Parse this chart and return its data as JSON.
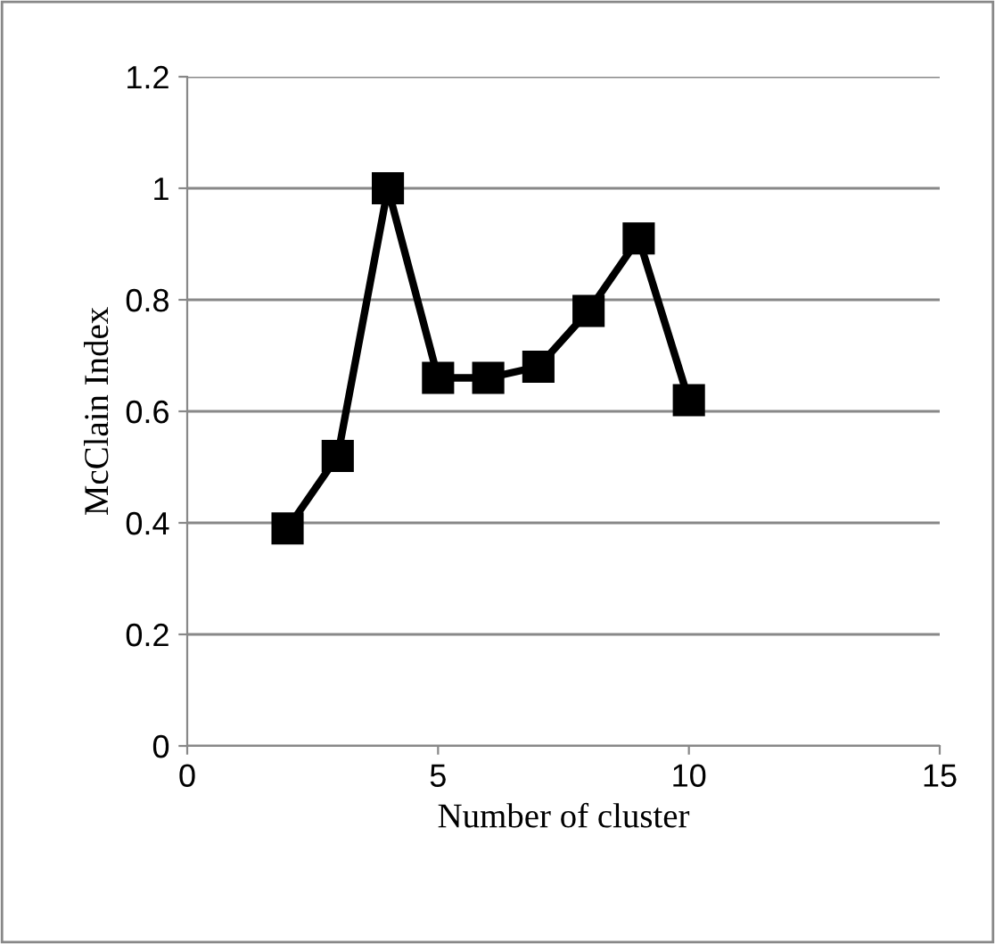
{
  "chart_data": {
    "type": "line",
    "xlabel": "Number of cluster",
    "ylabel": "McClain Index",
    "x": [
      2,
      3,
      4,
      5,
      6,
      7,
      8,
      9,
      10
    ],
    "series": [
      {
        "color": "#000000",
        "values": [
          0.39,
          0.52,
          1.0,
          0.66,
          0.66,
          0.68,
          0.78,
          0.91,
          0.62
        ]
      }
    ],
    "xlim": [
      0,
      15
    ],
    "xticks": [
      0,
      5,
      10,
      15
    ],
    "ylim": [
      0,
      1.2
    ],
    "yticks": [
      0,
      0.2,
      0.4,
      0.6,
      0.8,
      1,
      1.2
    ],
    "grid": "y",
    "marker": "square",
    "line_style": "solid",
    "legend": false
  }
}
